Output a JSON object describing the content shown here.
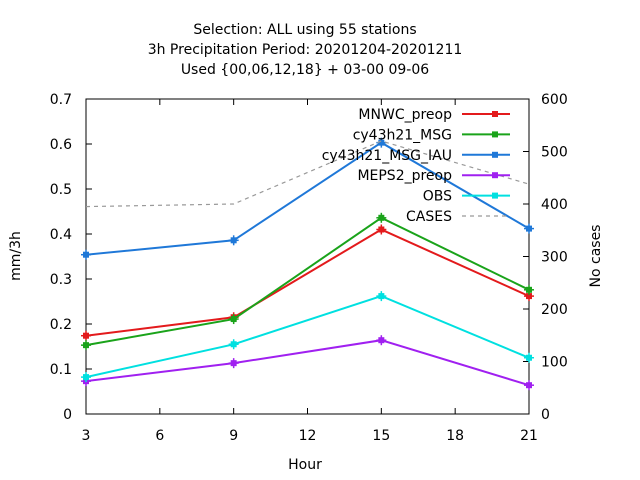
{
  "chart_data": {
    "type": "line",
    "title_lines": [
      "Selection: ALL using    55 stations",
      "3h Precipitation   Period: 20201204-20201211",
      "Used {00,06,12,18} + 03-00 09-06"
    ],
    "xlabel": "Hour",
    "ylabel": "mm/3h",
    "y2label": "No cases",
    "xlim": [
      3,
      21
    ],
    "ylim": [
      0,
      0.7
    ],
    "y2lim": [
      0,
      600
    ],
    "x_ticks": [
      "3",
      "6",
      "9",
      "12",
      "15",
      "18",
      "21"
    ],
    "y_ticks": [
      "0",
      "0.1",
      "0.2",
      "0.3",
      "0.4",
      "0.5",
      "0.6",
      "0.7"
    ],
    "y2_ticks": [
      "0",
      "100",
      "200",
      "300",
      "400",
      "500",
      "600"
    ],
    "x": [
      3,
      9,
      15,
      21
    ],
    "legend_position": "top-right",
    "series": [
      {
        "name": "MNWC_preop",
        "color": "#e31a1c",
        "axis": "y",
        "values": [
          0.174,
          0.215,
          0.41,
          0.262
        ]
      },
      {
        "name": "cy43h21_MSG",
        "color": "#1aa31a",
        "axis": "y",
        "values": [
          0.153,
          0.211,
          0.436,
          0.276
        ]
      },
      {
        "name": "cy43h21_MSG_IAU",
        "color": "#1f78d8",
        "axis": "y",
        "values": [
          0.354,
          0.386,
          0.603,
          0.412
        ]
      },
      {
        "name": "MEPS2_preop",
        "color": "#a020f0",
        "axis": "y",
        "values": [
          0.073,
          0.113,
          0.164,
          0.064
        ]
      },
      {
        "name": "OBS",
        "color": "#00e0e0",
        "axis": "y",
        "values": [
          0.082,
          0.155,
          0.262,
          0.125
        ]
      },
      {
        "name": "CASES",
        "color": "#999999",
        "axis": "y2",
        "dashed": true,
        "values": [
          395,
          400,
          520,
          438
        ]
      }
    ]
  }
}
